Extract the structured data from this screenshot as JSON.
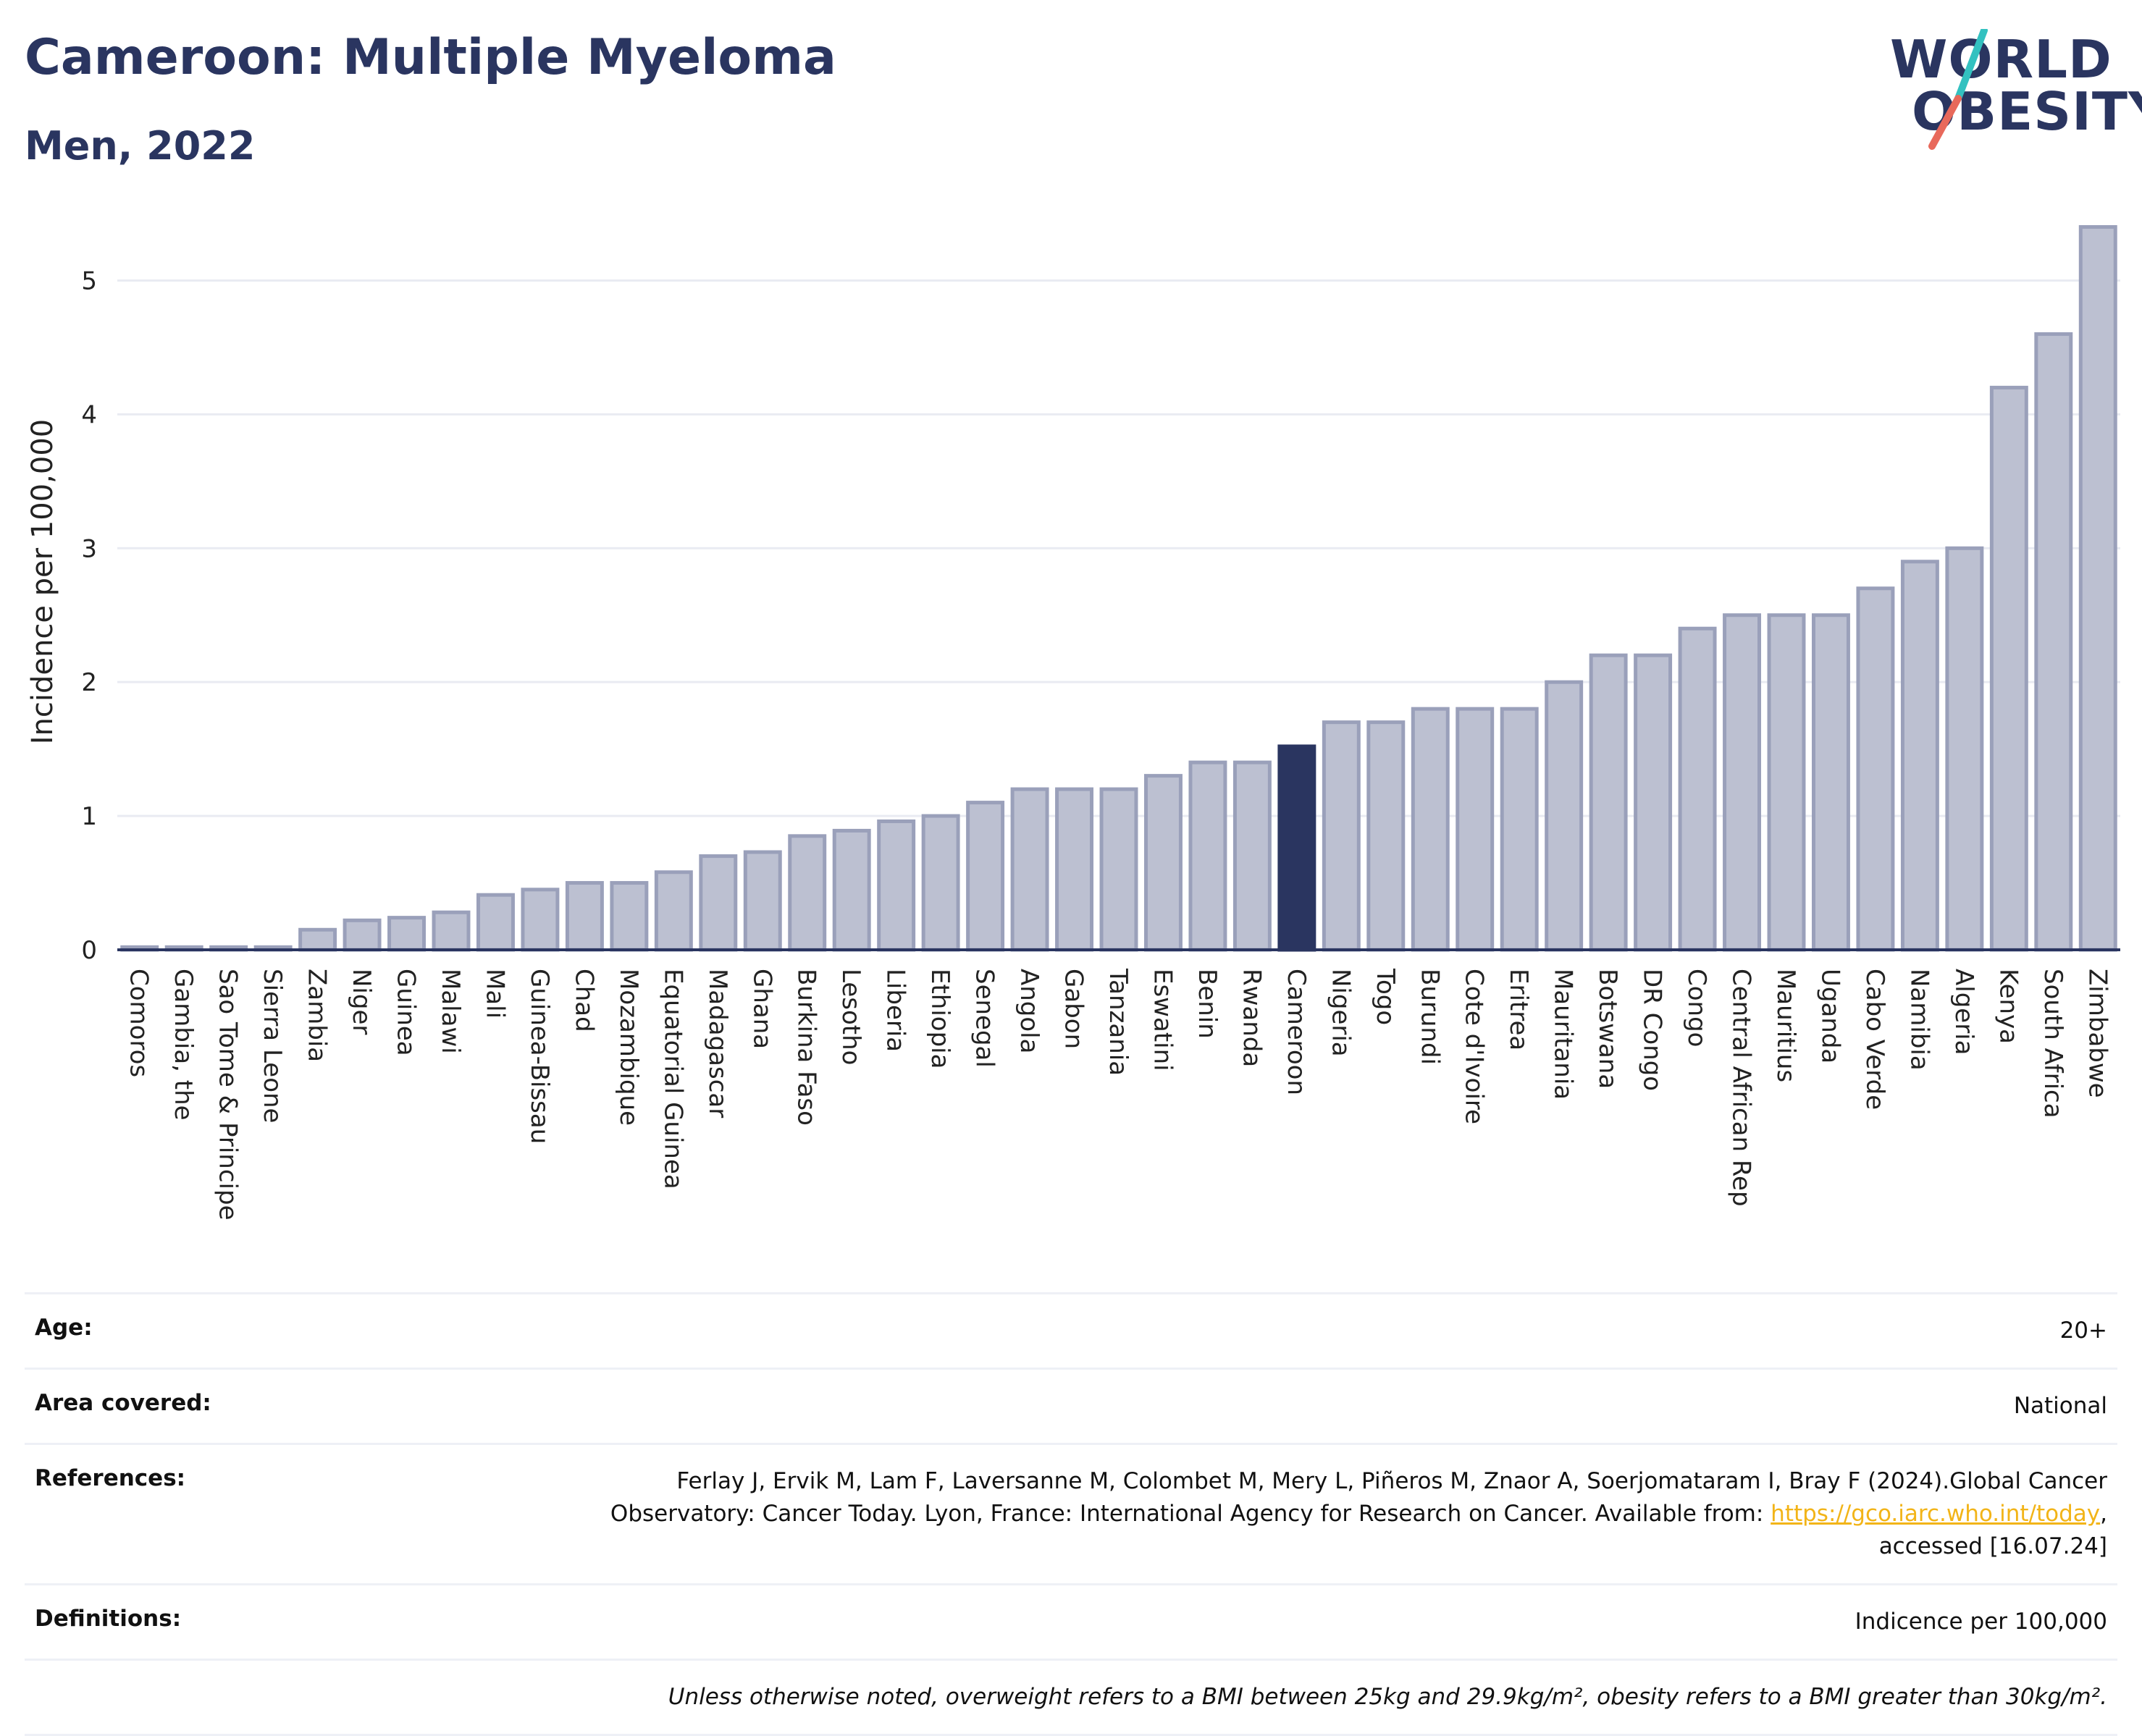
{
  "header": {
    "title": "Cameroon: Multiple Myeloma",
    "subtitle": "Men, 2022"
  },
  "logo": {
    "line1": "WORLD",
    "line2": "OBESITY"
  },
  "colors": {
    "bar": "#bcc0d1",
    "bar_stroke": "#9aa0ba",
    "highlight": "#2a3560",
    "grid": "#e9ebf2",
    "axis": "#2a3560",
    "logo_slash_top": "#33c1c0",
    "logo_slash_bottom": "#e8695b"
  },
  "chart_data": {
    "type": "bar",
    "ylabel": "Incidence per 100,000",
    "xlabel": "",
    "ylim": [
      0,
      5.5
    ],
    "yticks": [
      0,
      1,
      2,
      3,
      4,
      5
    ],
    "grid": true,
    "highlight": "Cameroon",
    "categories": [
      "Comoros",
      "Gambia, the",
      "Sao Tome & Principe",
      "Sierra Leone",
      "Zambia",
      "Niger",
      "Guinea",
      "Malawi",
      "Mali",
      "Guinea-Bissau",
      "Chad",
      "Mozambique",
      "Equatorial Guinea",
      "Madagascar",
      "Ghana",
      "Burkina Faso",
      "Lesotho",
      "Liberia",
      "Ethiopia",
      "Senegal",
      "Angola",
      "Gabon",
      "Tanzania",
      "Eswatini",
      "Benin",
      "Rwanda",
      "Cameroon",
      "Nigeria",
      "Togo",
      "Burundi",
      "Cote d'Ivoire",
      "Eritrea",
      "Mauritania",
      "Botswana",
      "DR Congo",
      "Congo",
      "Central African Rep",
      "Mauritius",
      "Uganda",
      "Cabo Verde",
      "Namibia",
      "Algeria",
      "Kenya",
      "South Africa",
      "Zimbabwe"
    ],
    "values": [
      0.02,
      0.02,
      0.02,
      0.02,
      0.15,
      0.22,
      0.24,
      0.28,
      0.41,
      0.45,
      0.5,
      0.5,
      0.58,
      0.7,
      0.73,
      0.85,
      0.89,
      0.96,
      1.0,
      1.1,
      1.2,
      1.2,
      1.2,
      1.3,
      1.4,
      1.4,
      1.52,
      1.7,
      1.7,
      1.8,
      1.8,
      1.8,
      2.0,
      2.2,
      2.2,
      2.4,
      2.5,
      2.5,
      2.5,
      2.7,
      2.9,
      3.0,
      4.2,
      4.6,
      5.4
    ]
  },
  "info": {
    "age_label": "Age:",
    "age_value": "20+",
    "area_label": "Area covered:",
    "area_value": "National",
    "references_label": "References:",
    "references_line1": "Ferlay J, Ervik M, Lam F, Laversanne M, Colombet M, Mery L, Piñeros M, Znaor A, Soerjomataram I, Bray F (2024).Global Cancer",
    "references_line2_pre": "Observatory: Cancer Today. Lyon, France: International Agency for Research on Cancer. Available from: ",
    "references_link": "https://gco.iarc.who.int/today",
    "references_line2_post": ",",
    "references_line3": "accessed [16.07.24]",
    "definitions_label": "Definitions:",
    "definitions_value": "Indicence per 100,000",
    "note": "Unless otherwise noted, overweight refers to a BMI between 25kg and 29.9kg/m², obesity refers to a BMI greater than 30kg/m²."
  }
}
